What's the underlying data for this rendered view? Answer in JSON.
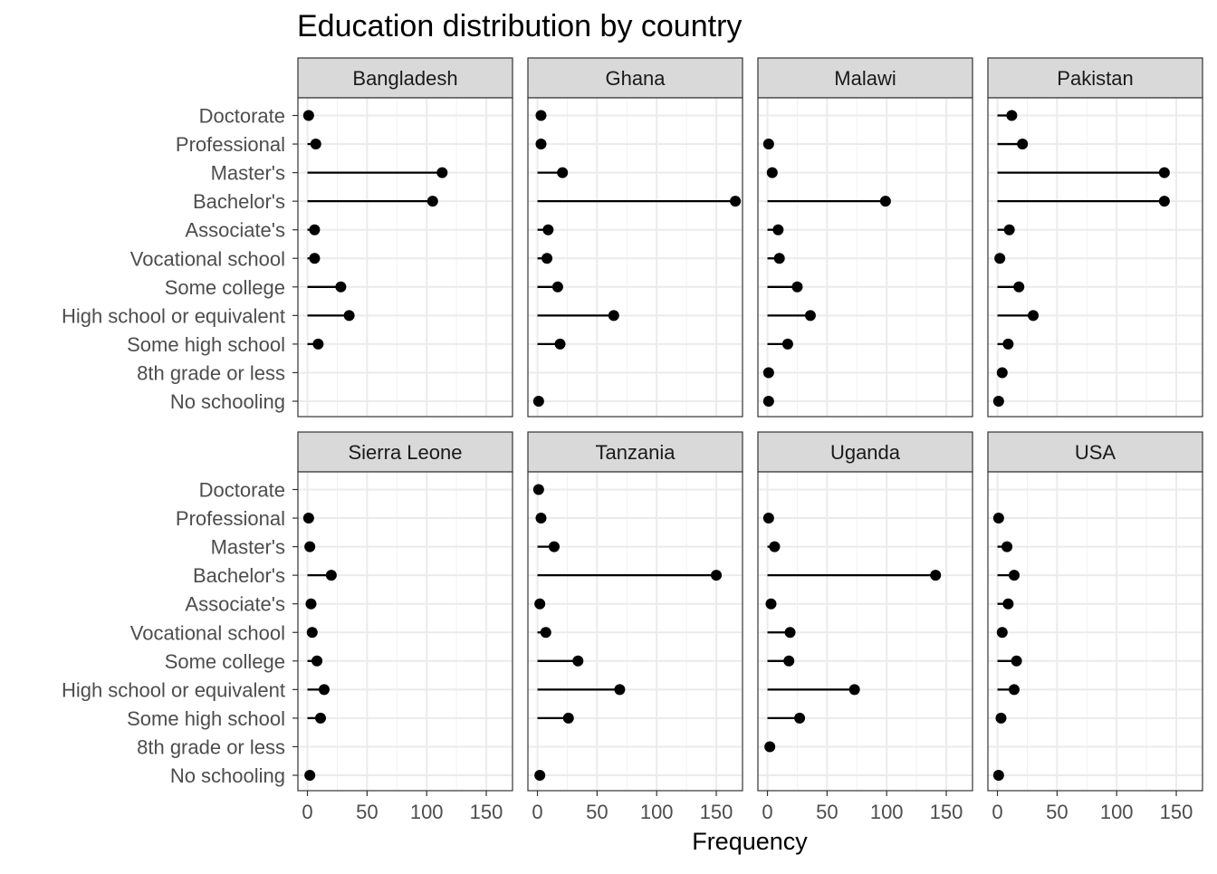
{
  "chart_data": {
    "type": "lollipop",
    "title": "Education distribution by country",
    "xlabel": "Frequency",
    "ylabel": "",
    "xlim": [
      -8,
      172
    ],
    "xticks": [
      0,
      50,
      100,
      150
    ],
    "grid": true,
    "facet_layout": {
      "rows": 2,
      "cols": 4
    },
    "categories": [
      "Doctorate",
      "Professional",
      "Master's",
      "Bachelor's",
      "Associate's",
      "Vocational school",
      "Some college",
      "High school or equivalent",
      "Some high school",
      "8th grade or less",
      "No schooling"
    ],
    "panels": [
      {
        "name": "Bangladesh",
        "values": [
          1,
          7,
          113,
          105,
          6,
          6,
          28,
          35,
          9,
          null,
          null
        ]
      },
      {
        "name": "Ghana",
        "values": [
          3,
          3,
          21,
          166,
          9,
          8,
          17,
          64,
          19,
          null,
          1
        ]
      },
      {
        "name": "Malawi",
        "values": [
          null,
          1,
          4,
          99,
          9,
          10,
          25,
          36,
          17,
          1,
          1
        ]
      },
      {
        "name": "Pakistan",
        "values": [
          12,
          21,
          140,
          140,
          10,
          2,
          18,
          30,
          9,
          4,
          1
        ]
      },
      {
        "name": "Sierra Leone",
        "values": [
          null,
          1,
          2,
          20,
          3,
          4,
          8,
          14,
          11,
          null,
          2
        ]
      },
      {
        "name": "Tanzania",
        "values": [
          1,
          3,
          14,
          150,
          2,
          7,
          34,
          69,
          26,
          null,
          2
        ]
      },
      {
        "name": "Uganda",
        "values": [
          null,
          1,
          6,
          141,
          3,
          19,
          18,
          73,
          27,
          2,
          null
        ]
      },
      {
        "name": "USA",
        "values": [
          null,
          1,
          8,
          14,
          9,
          4,
          16,
          14,
          3,
          null,
          1
        ]
      }
    ]
  }
}
